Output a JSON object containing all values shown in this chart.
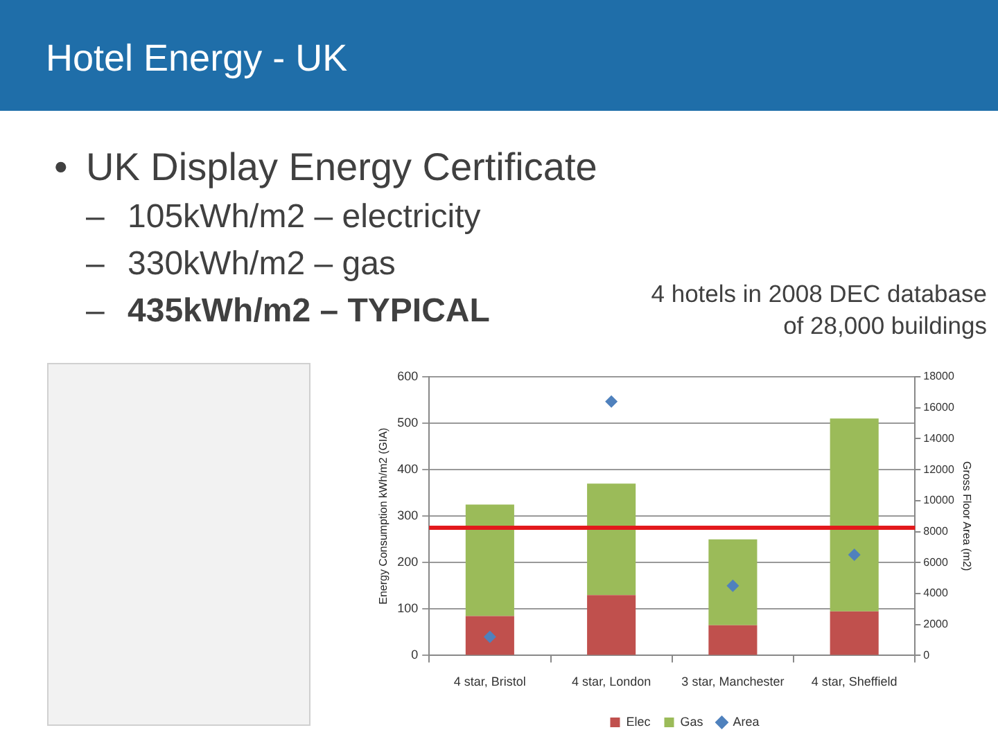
{
  "chart_data": {
    "type": "bar",
    "title": "Hotel Energy - UK",
    "subtitle": "4 hotels in 2008 DEC database of 28,000 buildings",
    "annotations": [
      "• UK Display Energy Certificate",
      "– 105kWh/m2 – electricity",
      "– 330kWh/m2 – gas",
      "– 435kWh/m2 – TYPICAL"
    ],
    "ylabel": "Energy Consumption kWh/m2 (GIA)",
    "y2label": "Gross Floor Area (m2)",
    "categories": [
      "4 star, Bristol",
      "4 star, London",
      "3 star, Manchester",
      "4 star, Sheffield"
    ],
    "stacked": true,
    "series": [
      {
        "name": "Elec",
        "color": "#c0504d",
        "values": [
          85,
          130,
          65,
          95
        ]
      },
      {
        "name": "Gas",
        "color": "#9bbb59",
        "values": [
          240,
          240,
          185,
          415
        ]
      },
      {
        "name": "Area",
        "type": "scatter",
        "axis": "y2",
        "marker": "diamond",
        "color": "#4f81bd",
        "values": [
          1200,
          16400,
          4500,
          6500
        ]
      }
    ],
    "ylim": [
      0,
      600
    ],
    "yticks": [
      0,
      100,
      200,
      300,
      400,
      500,
      600
    ],
    "y2lim": [
      0,
      18000
    ],
    "y2ticks": [
      0,
      2000,
      4000,
      6000,
      8000,
      10000,
      12000,
      14000,
      16000,
      18000
    ],
    "ref_lines": [
      {
        "axis": "y",
        "value": 275,
        "color": "#e3191c"
      }
    ],
    "grid": "y",
    "legend": "bottom"
  }
}
